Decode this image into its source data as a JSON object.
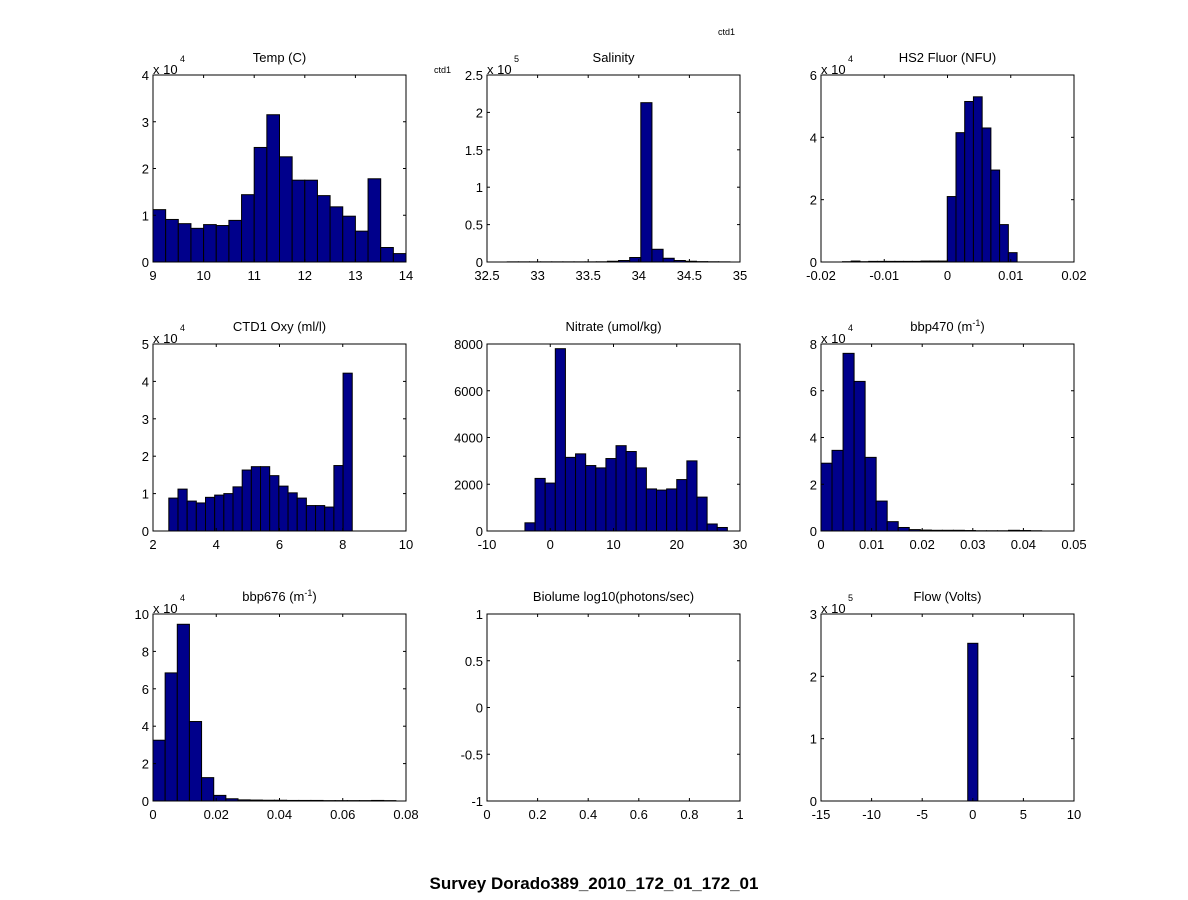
{
  "figure": {
    "title": "Survey Dorado389_2010_172_01_172_01",
    "annotations": [
      "ctd1",
      "ctd1"
    ],
    "bar_color": "#00008B",
    "bar_edge": "#000000"
  },
  "chart_data": [
    {
      "type": "bar",
      "title": "Temp (C)",
      "exponent": "4",
      "xlim": [
        9,
        14
      ],
      "ylim": [
        0,
        4
      ],
      "xticks": [
        9,
        10,
        11,
        12,
        13,
        14
      ],
      "xtick_labels": [
        "9",
        "10",
        "11",
        "12",
        "13",
        "14"
      ],
      "yticks": [
        0,
        1,
        2,
        3,
        4
      ],
      "ytick_labels": [
        "0",
        "1",
        "2",
        "3",
        "4"
      ],
      "bin_start": 9.0,
      "bin_width": 0.25,
      "values": [
        1.12,
        0.91,
        0.82,
        0.72,
        0.8,
        0.78,
        0.89,
        1.44,
        2.45,
        3.15,
        2.25,
        1.75,
        1.75,
        1.42,
        1.18,
        0.98,
        0.66,
        1.78,
        0.31,
        0.18
      ]
    },
    {
      "type": "bar",
      "title": "Salinity",
      "exponent": "5",
      "xlim": [
        32.5,
        35
      ],
      "ylim": [
        0,
        2.5
      ],
      "xticks": [
        32.5,
        33,
        33.5,
        34,
        34.5,
        35
      ],
      "xtick_labels": [
        "32.5",
        "33",
        "33.5",
        "34",
        "34.5",
        "35"
      ],
      "yticks": [
        0,
        0.5,
        1,
        1.5,
        2,
        2.5
      ],
      "ytick_labels": [
        "0",
        "0.5",
        "1",
        "1.5",
        "2",
        "2.5"
      ],
      "bin_start": 32.7,
      "bin_width": 0.11,
      "values": [
        0.002,
        0.002,
        0.002,
        0.002,
        0.002,
        0.002,
        0.002,
        0.002,
        0.003,
        0.01,
        0.02,
        0.06,
        2.13,
        0.17,
        0.05,
        0.02,
        0.01,
        0.005,
        0.003,
        0.002
      ]
    },
    {
      "type": "bar",
      "title": "HS2 Fluor (NFU)",
      "exponent": "4",
      "xlim": [
        -0.02,
        0.02
      ],
      "ylim": [
        0,
        6
      ],
      "xticks": [
        -0.02,
        -0.01,
        0,
        0.01,
        0.02
      ],
      "xtick_labels": [
        "-0.02",
        "-0.01",
        "0",
        "0.01",
        "0.02"
      ],
      "yticks": [
        0,
        2,
        4,
        6
      ],
      "ytick_labels": [
        "0",
        "2",
        "4",
        "6"
      ],
      "bin_start": -0.0166,
      "bin_width": 0.00138,
      "values": [
        0.01,
        0.03,
        0.01,
        0.02,
        0.02,
        0.02,
        0.02,
        0.02,
        0.02,
        0.03,
        0.03,
        0.03,
        2.1,
        4.15,
        5.15,
        5.3,
        4.3,
        2.95,
        1.2,
        0.3
      ]
    },
    {
      "type": "bar",
      "title": "CTD1 Oxy (ml/l)",
      "exponent": "4",
      "xlim": [
        2,
        10
      ],
      "ylim": [
        0,
        5
      ],
      "xticks": [
        2,
        4,
        6,
        8,
        10
      ],
      "xtick_labels": [
        "2",
        "4",
        "6",
        "8",
        "10"
      ],
      "yticks": [
        0,
        1,
        2,
        3,
        4,
        5
      ],
      "ytick_labels": [
        "0",
        "1",
        "2",
        "3",
        "4",
        "5"
      ],
      "bin_start": 2.5,
      "bin_width": 0.29,
      "values": [
        0.88,
        1.12,
        0.8,
        0.75,
        0.9,
        0.96,
        1.0,
        1.18,
        1.63,
        1.72,
        1.72,
        1.48,
        1.2,
        1.02,
        0.88,
        0.68,
        0.68,
        0.64,
        1.75,
        4.22
      ]
    },
    {
      "type": "bar",
      "title": "Nitrate (umol/kg)",
      "exponent": "",
      "xlim": [
        -10,
        30
      ],
      "ylim": [
        0,
        8000
      ],
      "xticks": [
        -10,
        0,
        10,
        20,
        30
      ],
      "xtick_labels": [
        "-10",
        "0",
        "10",
        "20",
        "30"
      ],
      "yticks": [
        0,
        2000,
        4000,
        6000,
        8000
      ],
      "ytick_labels": [
        "0",
        "2000",
        "4000",
        "6000",
        "8000"
      ],
      "bin_start": -4.0,
      "bin_width": 1.6,
      "values": [
        350,
        2250,
        2050,
        7800,
        3150,
        3300,
        2800,
        2700,
        3100,
        3650,
        3400,
        2700,
        1800,
        1750,
        1800,
        2200,
        3000,
        1450,
        300,
        150
      ]
    },
    {
      "type": "bar",
      "title": "bbp470 (m",
      "title_sup": "-1",
      "title_end": ")",
      "exponent": "4",
      "xlim": [
        0,
        0.05
      ],
      "ylim": [
        0,
        8
      ],
      "xticks": [
        0,
        0.01,
        0.02,
        0.03,
        0.04,
        0.05
      ],
      "xtick_labels": [
        "0",
        "0.01",
        "0.02",
        "0.03",
        "0.04",
        "0.05"
      ],
      "yticks": [
        0,
        2,
        4,
        6,
        8
      ],
      "ytick_labels": [
        "0",
        "2",
        "4",
        "6",
        "8"
      ],
      "bin_start": 0.0,
      "bin_width": 0.00218,
      "values": [
        2.9,
        3.45,
        7.6,
        6.4,
        3.15,
        1.28,
        0.4,
        0.15,
        0.06,
        0.04,
        0.03,
        0.03,
        0.03,
        0.02,
        0.01,
        0.01,
        0.01,
        0.03,
        0.02,
        0.01
      ]
    },
    {
      "type": "bar",
      "title": "bbp676 (m",
      "title_sup": "-1",
      "title_end": ")",
      "exponent": "4",
      "xlim": [
        0,
        0.08
      ],
      "ylim": [
        0,
        10
      ],
      "xticks": [
        0,
        0.02,
        0.04,
        0.06,
        0.08
      ],
      "xtick_labels": [
        "0",
        "0.02",
        "0.04",
        "0.06",
        "0.08"
      ],
      "yticks": [
        0,
        2,
        4,
        6,
        8,
        10
      ],
      "ytick_labels": [
        "0",
        "2",
        "4",
        "6",
        "8",
        "10"
      ],
      "bin_start": 0.0,
      "bin_width": 0.00384,
      "values": [
        3.25,
        6.85,
        9.45,
        4.25,
        1.25,
        0.3,
        0.12,
        0.06,
        0.05,
        0.04,
        0.04,
        0.03,
        0.03,
        0.03,
        0.02,
        0.02,
        0.02,
        0.02,
        0.03,
        0.02
      ]
    },
    {
      "type": "bar",
      "title": "Biolume log10(photons/sec)",
      "exponent": "",
      "xlim": [
        0,
        1
      ],
      "ylim": [
        -1,
        1
      ],
      "xticks": [
        0,
        0.2,
        0.4,
        0.6,
        0.8,
        1
      ],
      "xtick_labels": [
        "0",
        "0.2",
        "0.4",
        "0.6",
        "0.8",
        "1"
      ],
      "yticks": [
        -1,
        -0.5,
        0,
        0.5,
        1
      ],
      "ytick_labels": [
        "-1",
        "-0.5",
        "0",
        "0.5",
        "1"
      ],
      "bin_start": 0,
      "bin_width": 0.05,
      "values": []
    },
    {
      "type": "bar",
      "title": "Flow (Volts)",
      "exponent": "5",
      "xlim": [
        -15,
        10
      ],
      "ylim": [
        0,
        3
      ],
      "xticks": [
        -15,
        -10,
        -5,
        0,
        5,
        10
      ],
      "xtick_labels": [
        "-15",
        "-10",
        "-5",
        "0",
        "5",
        "10"
      ],
      "yticks": [
        0,
        1,
        2,
        3
      ],
      "ytick_labels": [
        "0",
        "1",
        "2",
        "3"
      ],
      "bin_start": -0.5,
      "bin_width": 1.0,
      "values": [
        2.53
      ]
    }
  ]
}
